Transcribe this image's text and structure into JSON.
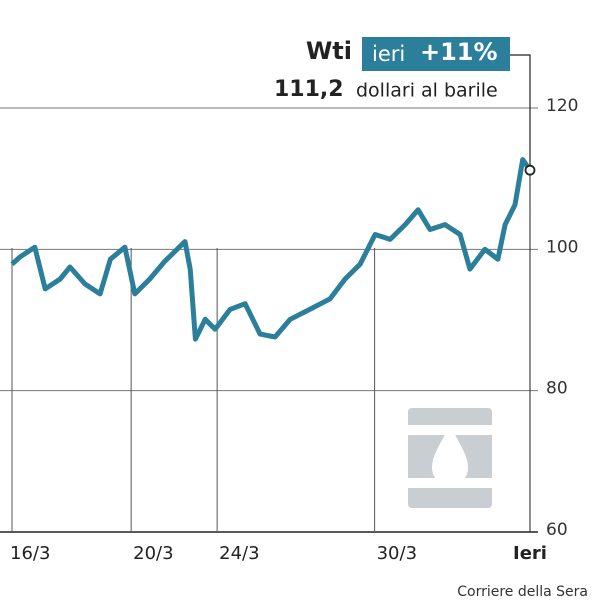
{
  "chart_data": {
    "type": "line",
    "title": "Wti",
    "badge": {
      "label": "ieri",
      "change": "+11%"
    },
    "subtitle": {
      "value": "111,2",
      "unit": "dollari al barile"
    },
    "source": "Corriere della Sera",
    "x": [
      0,
      1.5,
      4.4,
      6.4,
      9.3,
      11.2,
      14.1,
      17,
      19,
      21.8,
      23.7,
      26.6,
      29.5,
      33.4,
      34.4,
      35.4,
      37.3,
      39.2,
      42.1,
      45,
      47.9,
      50.8,
      53.7,
      57.5,
      61.4,
      64.3,
      67.2,
      70.1,
      73,
      75.9,
      78.4,
      80.7,
      83.6,
      86.5,
      88.4,
      91.3,
      93.8,
      95.2,
      97.1,
      98.6,
      100
    ],
    "series": [
      {
        "name": "Wti",
        "color": "#2b7f9b",
        "values": [
          97.9,
          98.9,
          100.3,
          94.4,
          95.8,
          97.5,
          95.1,
          93.7,
          98.6,
          100.3,
          93.7,
          95.8,
          98.3,
          101.1,
          97.2,
          87.3,
          90.1,
          88.7,
          91.5,
          92.3,
          88.0,
          87.6,
          90.1,
          91.5,
          93.0,
          95.8,
          97.9,
          102.1,
          101.4,
          103.5,
          105.6,
          102.8,
          103.5,
          102.1,
          97.2,
          100.0,
          98.6,
          103.5,
          106.3,
          112.7,
          111.2
        ]
      }
    ],
    "xlim": [
      0,
      100
    ],
    "xticks": [
      {
        "value": 0,
        "label": "16/3"
      },
      {
        "value": 23,
        "label": "20/3"
      },
      {
        "value": 39.6,
        "label": "24/3"
      },
      {
        "value": 70,
        "label": "30/3"
      },
      {
        "value": 100,
        "label": "Ieri"
      }
    ],
    "ylim": [
      60,
      120
    ],
    "yticks": [
      60,
      80,
      100,
      120
    ],
    "grid": true
  }
}
